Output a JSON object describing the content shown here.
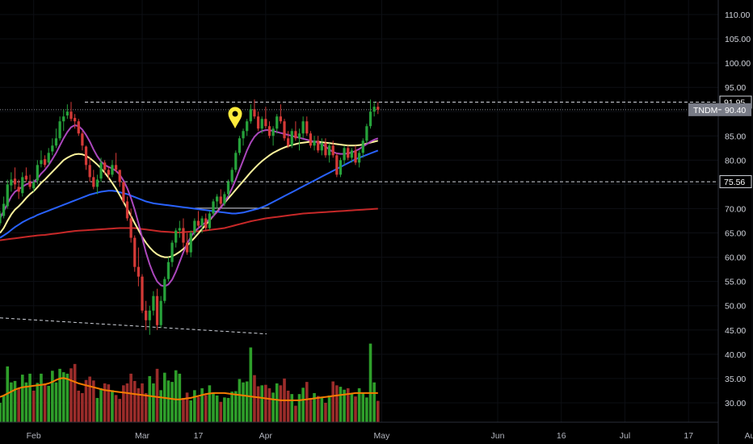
{
  "chart_data": {
    "type": "candlestick",
    "symbol": "TNDM",
    "last_price": "90.40",
    "ylim": [
      26,
      113
    ],
    "y_ticks": [
      "110.00",
      "105.00",
      "100.00",
      "95.00",
      "90.00",
      "85.00",
      "80.00",
      "75.00",
      "70.00",
      "65.00",
      "60.00",
      "55.00",
      "50.00",
      "45.00",
      "40.00",
      "35.00",
      "30.00"
    ],
    "x_ticks": [
      "Feb",
      "Mar",
      "17",
      "Apr",
      "May",
      "Jun",
      "16",
      "Jul",
      "17",
      "Aug"
    ],
    "levels": [
      {
        "label": "91.95",
        "value": 91.95
      },
      {
        "label": "75.56",
        "value": 75.56
      }
    ],
    "x_range": [
      0,
      190
    ],
    "x_tick_index": [
      9,
      38,
      53,
      71,
      102,
      133,
      150,
      167,
      184,
      201
    ],
    "candles": [
      [
        67.0,
        69.5,
        66.5,
        69.0
      ],
      [
        68.5,
        72.5,
        68.0,
        71.0
      ],
      [
        70.5,
        76.0,
        70.0,
        75.0
      ],
      [
        74.8,
        77.5,
        73.5,
        76.0
      ],
      [
        76.2,
        78.5,
        74.0,
        75.0
      ],
      [
        74.5,
        76.0,
        72.0,
        73.5
      ],
      [
        73.2,
        77.5,
        72.5,
        76.5
      ],
      [
        76.8,
        78.5,
        75.5,
        76.0
      ],
      [
        75.5,
        77.0,
        74.0,
        74.5
      ],
      [
        74.2,
        76.0,
        73.5,
        75.5
      ],
      [
        75.8,
        80.0,
        75.0,
        79.0
      ],
      [
        79.2,
        82.0,
        78.5,
        80.0
      ],
      [
        80.2,
        81.0,
        78.5,
        79.0
      ],
      [
        79.5,
        82.5,
        79.0,
        81.5
      ],
      [
        81.8,
        84.5,
        81.0,
        83.0
      ],
      [
        83.0,
        86.5,
        82.5,
        84.5
      ],
      [
        84.5,
        89.0,
        84.0,
        88.0
      ],
      [
        88.0,
        90.5,
        86.0,
        89.0
      ],
      [
        89.2,
        91.5,
        88.5,
        90.0
      ],
      [
        90.0,
        92.0,
        88.0,
        88.5
      ],
      [
        88.7,
        89.5,
        86.5,
        88.0
      ],
      [
        88.0,
        88.5,
        85.0,
        85.5
      ],
      [
        85.5,
        86.0,
        82.0,
        83.0
      ],
      [
        82.8,
        83.0,
        78.0,
        79.0
      ],
      [
        79.0,
        80.5,
        75.5,
        76.5
      ],
      [
        76.5,
        78.0,
        74.0,
        74.5
      ],
      [
        74.5,
        77.0,
        73.0,
        76.0
      ],
      [
        76.2,
        80.5,
        75.5,
        79.5
      ],
      [
        79.5,
        80.0,
        77.0,
        78.0
      ],
      [
        78.0,
        78.5,
        76.0,
        77.0
      ],
      [
        77.0,
        80.0,
        76.5,
        79.0
      ],
      [
        79.0,
        81.5,
        77.5,
        78.0
      ],
      [
        78.0,
        78.0,
        74.5,
        75.5
      ],
      [
        75.5,
        75.5,
        71.0,
        71.5
      ],
      [
        71.5,
        72.5,
        67.5,
        68.0
      ],
      [
        68.0,
        70.0,
        63.0,
        64.0
      ],
      [
        64.0,
        64.5,
        57.0,
        58.0
      ],
      [
        58.0,
        62.0,
        54.0,
        56.0
      ],
      [
        56.0,
        56.5,
        48.5,
        49.0
      ],
      [
        49.0,
        51.0,
        45.0,
        47.0
      ],
      [
        47.0,
        50.0,
        44.0,
        49.0
      ],
      [
        49.0,
        53.0,
        48.0,
        52.0
      ],
      [
        52.0,
        53.5,
        45.0,
        46.0
      ],
      [
        46.0,
        52.0,
        45.5,
        51.0
      ],
      [
        51.0,
        56.0,
        50.5,
        55.5
      ],
      [
        55.5,
        60.0,
        55.0,
        59.0
      ],
      [
        59.0,
        63.5,
        58.0,
        63.0
      ],
      [
        63.0,
        66.0,
        62.0,
        65.5
      ],
      [
        65.5,
        67.5,
        64.0,
        66.0
      ],
      [
        66.0,
        68.0,
        62.0,
        63.0
      ],
      [
        63.0,
        65.0,
        60.5,
        61.0
      ],
      [
        61.0,
        65.5,
        60.0,
        65.0
      ],
      [
        65.0,
        68.0,
        64.5,
        67.5
      ],
      [
        67.5,
        69.5,
        66.0,
        66.5
      ],
      [
        66.5,
        68.5,
        65.0,
        68.0
      ],
      [
        68.0,
        69.0,
        65.5,
        66.0
      ],
      [
        66.0,
        69.5,
        65.5,
        69.0
      ],
      [
        69.0,
        72.0,
        68.5,
        71.5
      ],
      [
        71.5,
        73.0,
        70.0,
        72.5
      ],
      [
        72.5,
        74.0,
        70.5,
        71.0
      ],
      [
        71.0,
        73.5,
        70.5,
        73.0
      ],
      [
        73.0,
        76.0,
        72.5,
        75.5
      ],
      [
        75.5,
        78.5,
        75.0,
        78.0
      ],
      [
        78.0,
        82.0,
        77.5,
        81.5
      ],
      [
        81.5,
        85.0,
        81.0,
        84.5
      ],
      [
        84.5,
        86.5,
        83.0,
        86.0
      ],
      [
        86.0,
        88.5,
        85.0,
        88.0
      ],
      [
        88.0,
        91.5,
        87.5,
        90.5
      ],
      [
        90.5,
        92.5,
        88.5,
        89.0
      ],
      [
        89.0,
        90.0,
        86.0,
        86.5
      ],
      [
        86.5,
        89.0,
        85.5,
        88.5
      ],
      [
        88.5,
        91.0,
        86.5,
        87.0
      ],
      [
        87.0,
        88.0,
        84.5,
        85.0
      ],
      [
        85.0,
        87.0,
        83.0,
        86.5
      ],
      [
        86.5,
        89.5,
        85.5,
        89.0
      ],
      [
        89.0,
        91.5,
        87.5,
        88.0
      ],
      [
        88.0,
        88.5,
        84.0,
        84.5
      ],
      [
        84.5,
        86.0,
        82.5,
        83.0
      ],
      [
        83.0,
        86.5,
        82.5,
        86.0
      ],
      [
        86.0,
        88.0,
        84.0,
        84.5
      ],
      [
        84.5,
        86.5,
        82.0,
        85.5
      ],
      [
        85.5,
        89.0,
        84.5,
        88.0
      ],
      [
        88.0,
        89.0,
        85.0,
        85.5
      ],
      [
        85.5,
        86.0,
        82.5,
        83.0
      ],
      [
        83.0,
        85.0,
        82.0,
        84.0
      ],
      [
        84.0,
        85.0,
        81.5,
        82.0
      ],
      [
        82.0,
        84.5,
        81.0,
        83.5
      ],
      [
        83.5,
        84.5,
        80.5,
        81.0
      ],
      [
        81.0,
        83.5,
        79.5,
        83.0
      ],
      [
        83.0,
        84.0,
        80.5,
        81.0
      ],
      [
        81.0,
        81.5,
        76.5,
        77.0
      ],
      [
        77.0,
        80.5,
        76.5,
        80.0
      ],
      [
        80.0,
        83.0,
        79.0,
        82.5
      ],
      [
        82.5,
        83.0,
        80.0,
        80.5
      ],
      [
        80.5,
        82.5,
        79.5,
        82.0
      ],
      [
        82.0,
        83.0,
        79.0,
        79.5
      ],
      [
        79.5,
        82.0,
        78.5,
        81.5
      ],
      [
        81.5,
        84.5,
        80.5,
        84.0
      ],
      [
        84.0,
        87.5,
        83.5,
        87.0
      ],
      [
        87.0,
        92.5,
        86.5,
        90.0
      ],
      [
        90.0,
        92.0,
        89.0,
        91.0
      ],
      [
        91.0,
        92.0,
        89.5,
        90.4
      ]
    ],
    "sma_slow": [
      63.5,
      63.6,
      63.7,
      63.8,
      63.9,
      64.0,
      64.1,
      64.2,
      64.3,
      64.4,
      64.5,
      64.55,
      64.6,
      64.7,
      64.8,
      64.9,
      65.0,
      65.1,
      65.2,
      65.3,
      65.4,
      65.45,
      65.5,
      65.55,
      65.6,
      65.65,
      65.7,
      65.75,
      65.8,
      65.85,
      65.9,
      65.95,
      66.0,
      66.0,
      66.0,
      66.0,
      66.0,
      65.9,
      65.8,
      65.7,
      65.6,
      65.5,
      65.4,
      65.3,
      65.25,
      65.2,
      65.15,
      65.1,
      65.1,
      65.15,
      65.2,
      65.25,
      65.3,
      65.35,
      65.4,
      65.5,
      65.6,
      65.7,
      65.8,
      65.9,
      66.0,
      66.2,
      66.4,
      66.6,
      66.8,
      67.0,
      67.2,
      67.4,
      67.55,
      67.7,
      67.85,
      68.0,
      68.1,
      68.2,
      68.3,
      68.4,
      68.5,
      68.6,
      68.7,
      68.8,
      68.9,
      69.0,
      69.05,
      69.1,
      69.15,
      69.2,
      69.25,
      69.3,
      69.35,
      69.4,
      69.45,
      69.5,
      69.55,
      69.6,
      69.65,
      69.7,
      69.75,
      69.8,
      69.85,
      69.9,
      69.95,
      70.0
    ],
    "sma_mid": [
      64.0,
      64.5,
      65.0,
      65.6,
      66.2,
      66.7,
      67.2,
      67.6,
      68.0,
      68.3,
      68.7,
      69.0,
      69.3,
      69.6,
      69.9,
      70.2,
      70.5,
      70.8,
      71.1,
      71.4,
      71.7,
      72.0,
      72.3,
      72.6,
      72.9,
      73.1,
      73.3,
      73.5,
      73.6,
      73.7,
      73.7,
      73.6,
      73.4,
      73.2,
      73.0,
      72.7,
      72.4,
      72.1,
      71.8,
      71.5,
      71.3,
      71.1,
      71.0,
      70.9,
      70.8,
      70.7,
      70.6,
      70.5,
      70.4,
      70.3,
      70.2,
      70.1,
      70.0,
      69.9,
      69.8,
      69.7,
      69.6,
      69.5,
      69.4,
      69.3,
      69.2,
      69.1,
      69.0,
      69.0,
      69.1,
      69.2,
      69.4,
      69.6,
      69.8,
      70.0,
      70.3,
      70.6,
      71.0,
      71.4,
      71.8,
      72.2,
      72.6,
      73.0,
      73.4,
      73.8,
      74.2,
      74.6,
      75.0,
      75.4,
      75.8,
      76.2,
      76.6,
      77.0,
      77.4,
      77.8,
      78.2,
      78.6,
      79.0,
      79.4,
      79.8,
      80.2,
      80.5,
      80.8,
      81.1,
      81.4,
      81.7,
      82.0
    ],
    "sma_fast": [
      65.0,
      66.0,
      67.5,
      68.8,
      69.8,
      70.5,
      71.3,
      72.2,
      73.0,
      73.6,
      74.4,
      75.3,
      76.0,
      76.8,
      77.6,
      78.4,
      79.2,
      80.0,
      80.5,
      80.9,
      81.2,
      81.3,
      81.2,
      80.9,
      80.4,
      79.8,
      79.1,
      78.3,
      77.4,
      76.4,
      75.3,
      74.1,
      72.8,
      71.4,
      70.0,
      68.5,
      67.0,
      65.6,
      64.2,
      63.0,
      62.0,
      61.2,
      60.6,
      60.2,
      60.0,
      60.0,
      60.2,
      60.6,
      61.1,
      61.7,
      62.4,
      63.2,
      64.0,
      64.9,
      65.8,
      66.7,
      67.6,
      68.5,
      69.4,
      70.3,
      71.2,
      72.1,
      73.0,
      73.9,
      74.8,
      75.7,
      76.6,
      77.5,
      78.3,
      79.1,
      79.8,
      80.4,
      81.0,
      81.5,
      81.9,
      82.3,
      82.6,
      82.9,
      83.1,
      83.3,
      83.5,
      83.6,
      83.7,
      83.8,
      83.8,
      83.8,
      83.7,
      83.6,
      83.5,
      83.4,
      83.3,
      83.2,
      83.1,
      83.0,
      83.0,
      83.0,
      83.1,
      83.2,
      83.4,
      83.6,
      83.8,
      84.0
    ],
    "sma_faster": [
      68.0,
      69.5,
      71.0,
      72.5,
      73.5,
      74.0,
      74.5,
      75.0,
      75.3,
      75.5,
      76.2,
      77.2,
      78.0,
      79.0,
      80.2,
      81.5,
      83.0,
      84.5,
      85.8,
      86.8,
      87.2,
      87.0,
      86.3,
      85.2,
      83.8,
      82.2,
      80.8,
      79.7,
      79.0,
      78.6,
      78.3,
      77.8,
      77.0,
      75.8,
      74.2,
      72.2,
      69.8,
      67.0,
      64.0,
      61.0,
      58.5,
      56.5,
      55.0,
      54.2,
      54.0,
      54.4,
      55.4,
      57.0,
      59.0,
      61.0,
      62.8,
      64.2,
      65.3,
      66.0,
      66.6,
      67.2,
      67.8,
      68.5,
      69.3,
      70.2,
      71.3,
      72.6,
      74.2,
      76.0,
      78.0,
      80.0,
      82.0,
      83.6,
      84.8,
      85.6,
      86.0,
      86.2,
      86.2,
      86.0,
      85.8,
      85.6,
      85.4,
      85.2,
      85.0,
      84.8,
      84.6,
      84.4,
      84.2,
      84.0,
      83.8,
      83.6,
      83.3,
      82.8,
      82.2,
      81.7,
      81.4,
      81.3,
      81.3,
      81.4,
      81.6,
      81.9,
      82.3,
      82.8,
      83.3,
      83.8,
      84.2,
      84.5
    ],
    "volume_ma": [
      31.2,
      31.5,
      31.9,
      32.3,
      32.7,
      33.0,
      33.2,
      33.3,
      33.4,
      33.5,
      33.6,
      33.7,
      33.8,
      34.0,
      34.3,
      34.7,
      35.0,
      35.1,
      34.9,
      34.6,
      34.3,
      34.0,
      33.8,
      33.6,
      33.4,
      33.2,
      33.0,
      32.8,
      32.6,
      32.5,
      32.4,
      32.3,
      32.2,
      32.1,
      32.0,
      31.9,
      31.8,
      31.7,
      31.6,
      31.5,
      31.4,
      31.3,
      31.2,
      31.1,
      31.0,
      30.9,
      30.8,
      30.7,
      30.7,
      30.8,
      30.9,
      31.0,
      31.2,
      31.4,
      31.6,
      31.8,
      31.9,
      32.0,
      32.0,
      32.0,
      32.0,
      31.9,
      31.8,
      31.7,
      31.6,
      31.5,
      31.4,
      31.3,
      31.2,
      31.1,
      31.0,
      30.9,
      30.8,
      30.7,
      30.6,
      30.5,
      30.5,
      30.5,
      30.5,
      30.5,
      30.5,
      30.6,
      30.7,
      30.8,
      30.9,
      31.0,
      31.1,
      31.2,
      31.3,
      31.4,
      31.5,
      31.6,
      31.7,
      31.8,
      31.9,
      32.0,
      32.0,
      32.0,
      32.0,
      32.0,
      32.0,
      32.0
    ],
    "volume": [
      30.0,
      31.5,
      37.5,
      34.2,
      34.5,
      33.0,
      35.8,
      34.2,
      36.0,
      32.5,
      34.1,
      36.0,
      34.0,
      33.5,
      36.6,
      34.2,
      37.0,
      36.3,
      36.0,
      37.1,
      38.0,
      32.5,
      32.0,
      34.7,
      35.4,
      34.6,
      31.0,
      33.0,
      34.0,
      33.8,
      32.6,
      31.6,
      30.8,
      33.6,
      34.0,
      36.0,
      34.5,
      33.0,
      34.0,
      32.0,
      35.5,
      34.0,
      37.0,
      32.6,
      36.2,
      34.6,
      34.3,
      36.7,
      36.0,
      31.0,
      32.1,
      30.5,
      32.6,
      31.2,
      33.0,
      31.6,
      33.6,
      32.0,
      31.5,
      30.2,
      31.1,
      31.0,
      32.3,
      32.4,
      34.9,
      34.2,
      34.4,
      41.4,
      35.7,
      33.4,
      33.6,
      33.7,
      33.0,
      32.1,
      34.0,
      33.6,
      35.0,
      32.5,
      31.8,
      29.4,
      31.8,
      33.1,
      34.3,
      31.0,
      32.0,
      31.4,
      31.0,
      30.0,
      31.5,
      34.4,
      33.6,
      33.3,
      32.7,
      33.0,
      32.0,
      31.3,
      33.0,
      32.0,
      31.1,
      42.2,
      34.2,
      30.4
    ],
    "volume_up": [
      1,
      1,
      1,
      1,
      1,
      0,
      1,
      1,
      1,
      0,
      1,
      1,
      0,
      1,
      1,
      1,
      1,
      1,
      1,
      0,
      0,
      0,
      0,
      0,
      0,
      0,
      1,
      1,
      0,
      0,
      1,
      0,
      0,
      0,
      0,
      0,
      0,
      0,
      0,
      0,
      1,
      1,
      0,
      1,
      1,
      1,
      1,
      1,
      1,
      0,
      0,
      1,
      1,
      0,
      1,
      0,
      1,
      1,
      1,
      0,
      1,
      1,
      1,
      1,
      1,
      1,
      1,
      1,
      0,
      0,
      1,
      0,
      0,
      1,
      1,
      0,
      0,
      0,
      1,
      0,
      1,
      1,
      0,
      0,
      1,
      0,
      1,
      0,
      1,
      0,
      0,
      1,
      1,
      0,
      1,
      0,
      1,
      1,
      1,
      1,
      1,
      0
    ],
    "annotation_marker": "location-pin"
  }
}
